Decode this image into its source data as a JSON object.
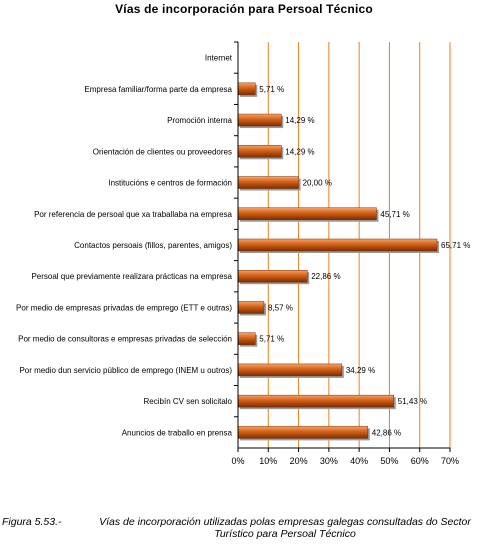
{
  "chart_data": {
    "type": "bar",
    "orientation": "horizontal",
    "title": "Vías de incorporación para Persoal Técnico",
    "categories": [
      "Internet",
      "Empresa familiar/forma parte da empresa",
      "Promoción interna",
      "Orientación de clientes ou proveedores",
      "Institucións e centros de formación",
      "Por referencia de persoal que xa traballaba na empresa",
      "Contactos persoais (fillos, parentes, amigos)",
      "Persoal que previamente realizara prácticas na empresa",
      "Por medio de empresas privadas de emprego (ETT e outras)",
      "Por medio de consultoras e empresas privadas de selección",
      "Por medio dun servicio público de emprego (INEM u outros)",
      "Recibín CV sen solicitalo",
      "Anuncios de traballo en prensa"
    ],
    "values": [
      null,
      5.71,
      14.29,
      14.29,
      20.0,
      45.71,
      65.71,
      22.86,
      8.57,
      5.71,
      34.29,
      51.43,
      42.86
    ],
    "value_labels": [
      "",
      "5,71 %",
      "14,29 %",
      "14,29 %",
      "20,00 %",
      "45,71 %",
      "65,71 %",
      "22,86 %",
      "8,57 %",
      "5,71 %",
      "34,29 %",
      "51,43 %",
      "42,86 %"
    ],
    "xlim": [
      0,
      70
    ],
    "x_ticks": [
      "0%",
      "10%",
      "20%",
      "30%",
      "40%",
      "50%",
      "60%",
      "70%"
    ],
    "grid": "vertical",
    "legend": "none",
    "colors": {
      "bar": "#d35f14",
      "bar_light": "#f4a46a",
      "bar_dark": "#7a2e05",
      "grid": "#e8821e",
      "axis": "#000000"
    }
  },
  "caption": {
    "figure_number": "Figura 5.53.-",
    "text": "Vías de incorporación utilizadas polas empresas galegas consultadas do Sector Turístico para Persoal Técnico"
  }
}
